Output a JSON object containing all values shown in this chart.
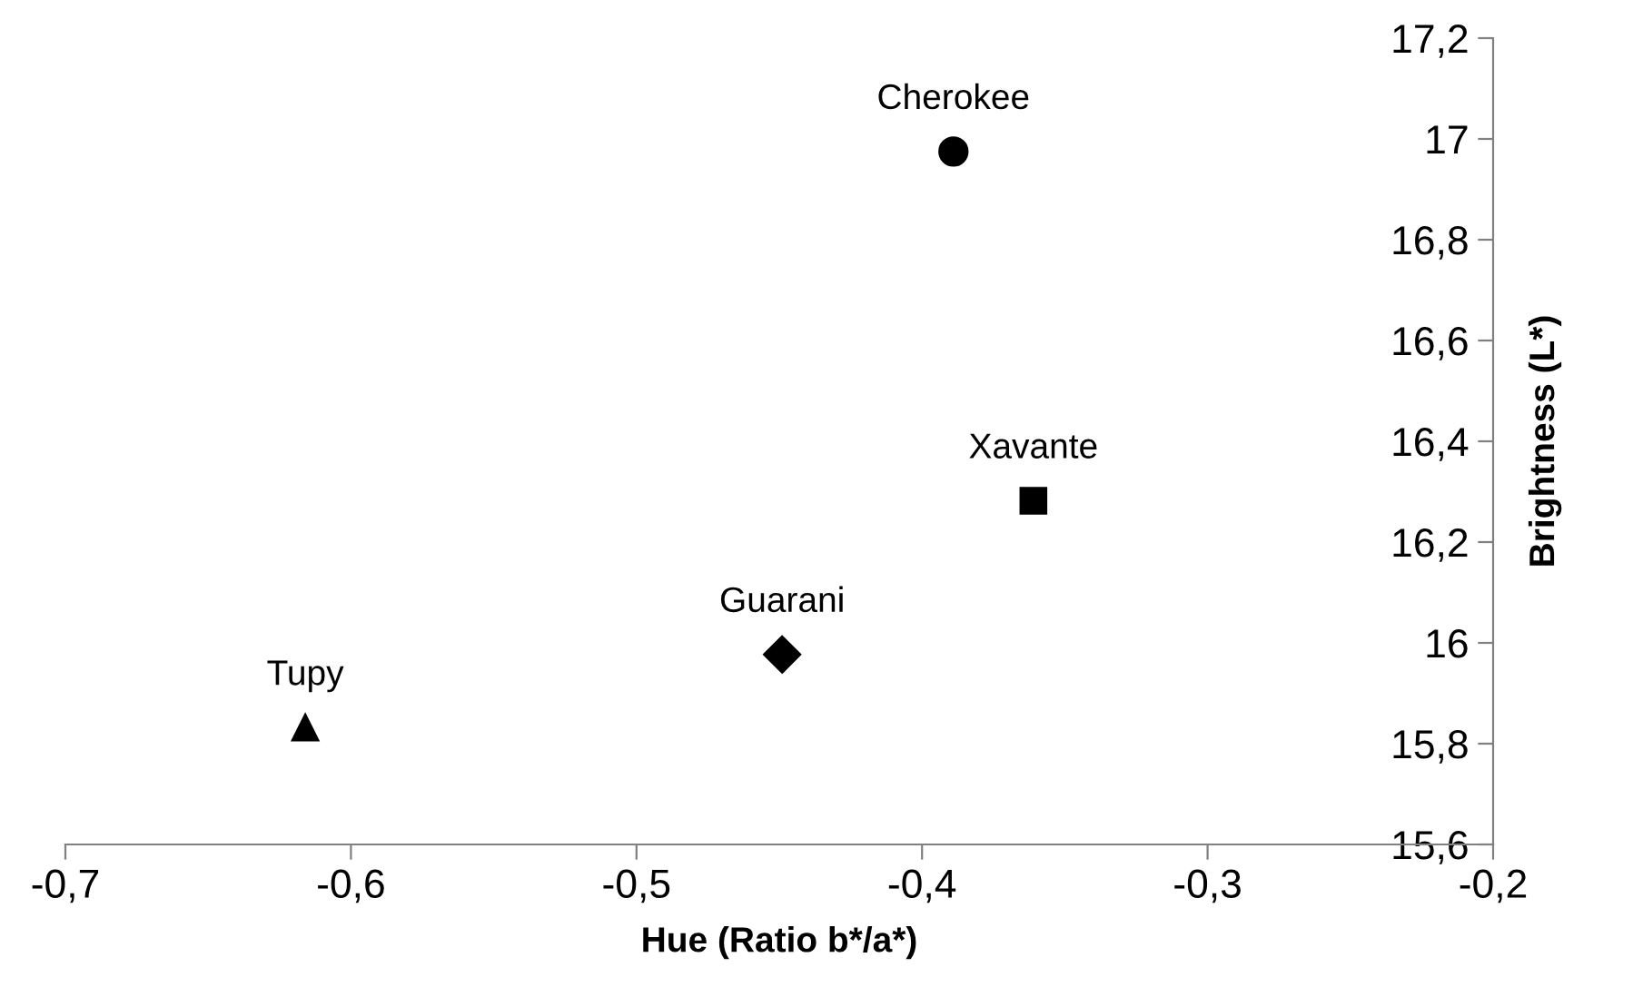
{
  "chart_data": {
    "type": "scatter",
    "xlabel": "Hue (Ratio b*/a*)",
    "ylabel": "Brightness (L*)",
    "series": [
      {
        "name": "Cherokee",
        "color": "#000000",
        "marker": "circle",
        "x": [
          -0.389
        ],
        "values": [
          16.975
        ]
      },
      {
        "name": "Xavante",
        "color": "#000000",
        "marker": "square",
        "x": [
          -0.361
        ],
        "values": [
          16.282
        ]
      },
      {
        "name": "Guarani",
        "color": "#000000",
        "marker": "diamond",
        "x": [
          -0.449
        ],
        "values": [
          15.977
        ]
      },
      {
        "name": "Tupy",
        "color": "#000000",
        "marker": "triangle",
        "x": [
          -0.616
        ],
        "values": [
          15.832
        ]
      }
    ],
    "xlim": [
      -0.7,
      -0.2
    ],
    "xticks": [
      {
        "value": -0.7,
        "label": "-0,7"
      },
      {
        "value": -0.6,
        "label": "-0,6"
      },
      {
        "value": -0.5,
        "label": "-0,5"
      },
      {
        "value": -0.4,
        "label": "-0,4"
      },
      {
        "value": -0.3,
        "label": "-0,3"
      },
      {
        "value": -0.2,
        "label": "-0,2"
      }
    ],
    "ylim": [
      15.6,
      17.2
    ],
    "yticks": [
      {
        "value": 15.6,
        "label": "15,6"
      },
      {
        "value": 15.8,
        "label": "15,8"
      },
      16,
      {
        "value": 16.2,
        "label": "16,2"
      },
      {
        "value": 16.4,
        "label": "16,4"
      },
      {
        "value": 16.6,
        "label": "16,6"
      },
      {
        "value": 16.8,
        "label": "16,8"
      },
      17,
      {
        "value": 17.2,
        "label": "17,2"
      }
    ],
    "grid": false,
    "legend": false
  }
}
